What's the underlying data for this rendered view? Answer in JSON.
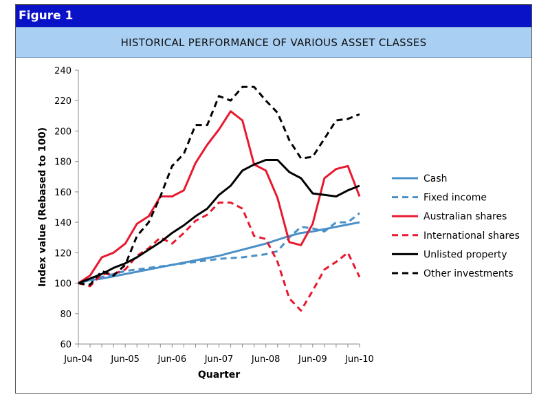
{
  "figure_label": "Figure 1",
  "chart_data": {
    "type": "line",
    "title": "HISTORICAL PERFORMANCE OF VARIOUS ASSET CLASSES",
    "xlabel": "Quarter",
    "ylabel": "Index value (Rebased to 100)",
    "ylim": [
      60,
      240
    ],
    "yticks": [
      60,
      80,
      100,
      120,
      140,
      160,
      180,
      200,
      220,
      240
    ],
    "x_start": "Jun-04",
    "x_end": "Jun-10",
    "x_count": 25,
    "xticks": [
      {
        "i": 0,
        "label": "Jun-04"
      },
      {
        "i": 4,
        "label": "Jun-05"
      },
      {
        "i": 8,
        "label": "Jun-06"
      },
      {
        "i": 12,
        "label": "Jun-07"
      },
      {
        "i": 16,
        "label": "Jun-08"
      },
      {
        "i": 20,
        "label": "Jun-09"
      },
      {
        "i": 24,
        "label": "Jun-10"
      }
    ],
    "grid": false,
    "legend_position": "right",
    "series": [
      {
        "name": "Cash",
        "color": "#4a90c8",
        "dash": "solid",
        "values": [
          100,
          102,
          103,
          104.5,
          106,
          107.5,
          109,
          110.5,
          112,
          113.5,
          115,
          116.5,
          118,
          120,
          122,
          124,
          126,
          128.5,
          131,
          133,
          134,
          135.5,
          137,
          138.5,
          140
        ]
      },
      {
        "name": "Fixed income",
        "color": "#4a90c8",
        "dash": "dashed",
        "values": [
          100,
          102,
          104,
          106,
          108,
          109,
          110,
          111,
          112,
          113,
          114,
          115,
          116,
          116.5,
          117,
          118,
          119,
          121,
          130,
          137,
          136,
          134,
          140,
          140,
          146
        ]
      },
      {
        "name": "Australian shares",
        "color": "#e8182e",
        "dash": "solid",
        "values": [
          100,
          105,
          117,
          120,
          126,
          139,
          144,
          157,
          157,
          161,
          179,
          191,
          201,
          213,
          207,
          178,
          174,
          156,
          127,
          125,
          139,
          169,
          175,
          177,
          157
        ]
      },
      {
        "name": "International shares",
        "color": "#e8182e",
        "dash": "dashed",
        "values": [
          100,
          98,
          106,
          106,
          109,
          118,
          123,
          130,
          126,
          133,
          141,
          145,
          153,
          153,
          149,
          131,
          129,
          114,
          90,
          82,
          95,
          109,
          114,
          120,
          104
        ]
      },
      {
        "name": "Unlisted property",
        "color": "#000000",
        "dash": "solid",
        "values": [
          100,
          103,
          106,
          110,
          113,
          117,
          122,
          127,
          133,
          138,
          144,
          149,
          158,
          164,
          174,
          178,
          181,
          181,
          173,
          169,
          159,
          158,
          157,
          161,
          164
        ]
      },
      {
        "name": "Other investments",
        "color": "#000000",
        "dash": "dashed",
        "values": [
          100,
          99,
          108,
          105,
          112,
          131,
          140,
          157,
          177,
          185,
          204,
          204,
          223,
          220,
          229,
          229,
          220,
          212,
          194,
          182,
          183,
          195,
          207,
          208,
          211
        ]
      }
    ]
  }
}
